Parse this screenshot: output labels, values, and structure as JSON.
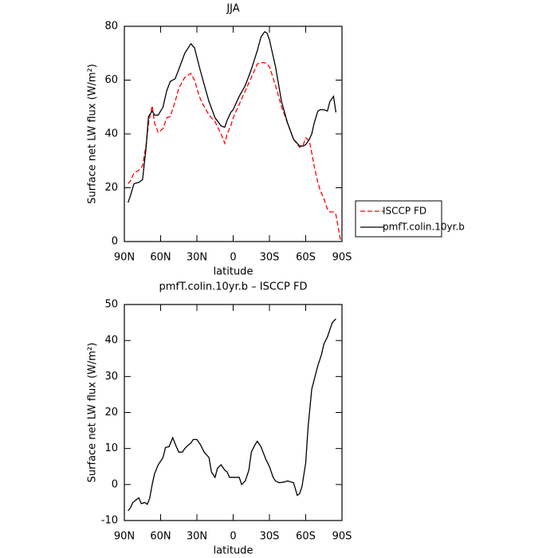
{
  "chart_data": [
    {
      "type": "line",
      "title": "JJA",
      "xlabel": "latitude",
      "ylabel": "Surface net LW flux (W/m²)",
      "x": [
        87,
        85,
        82,
        78,
        75,
        72,
        70,
        67,
        65,
        62,
        58,
        55,
        52,
        48,
        45,
        40,
        35,
        32,
        28,
        25,
        20,
        15,
        10,
        7,
        5,
        2,
        0,
        -5,
        -10,
        -15,
        -20,
        -23,
        -26,
        -28,
        -30,
        -35,
        -40,
        -45,
        -50,
        -55,
        -58,
        -60,
        -63,
        -65,
        -67,
        -70,
        -72,
        -75,
        -78,
        -80,
        -83,
        -85,
        -87,
        -89
      ],
      "series": [
        {
          "name": "ISCCP FD",
          "color": "#ff0000",
          "dashed": true,
          "values": [
            21.5,
            22.5,
            25.5,
            26.5,
            28,
            36,
            44,
            50.5,
            44,
            40.5,
            42,
            46,
            46.5,
            52,
            57,
            61,
            62.5,
            60,
            54,
            51,
            47,
            44.5,
            40,
            36.5,
            40,
            43,
            46,
            51,
            56,
            61,
            66,
            66.5,
            66.5,
            66,
            65,
            58,
            50,
            44,
            38,
            35,
            36,
            38.5,
            37.5,
            33,
            28,
            22,
            19,
            16,
            12,
            11,
            11,
            10,
            5,
            0
          ]
        },
        {
          "name": "pmfT.colin.10yr.b",
          "color": "#000000",
          "dashed": false,
          "values": [
            14.5,
            17,
            21.5,
            22,
            23,
            35,
            46.5,
            48.5,
            47,
            47,
            50,
            56,
            59.5,
            60.5,
            64,
            70,
            73.5,
            72,
            65,
            60,
            52,
            46,
            43,
            42.5,
            45,
            48,
            49,
            54,
            58,
            64,
            71,
            76,
            78,
            77.5,
            75,
            65,
            52,
            44,
            38,
            35.5,
            35.5,
            36,
            38,
            40,
            44,
            48.5,
            49,
            49,
            48.5,
            52,
            54,
            48,
            null,
            null
          ]
        }
      ],
      "xlim": [
        90,
        -90
      ],
      "xticks": [
        {
          "value": 90,
          "label": "90N"
        },
        {
          "value": 60,
          "label": "60N"
        },
        {
          "value": 30,
          "label": "30N"
        },
        0,
        {
          "value": -30,
          "label": "30S"
        },
        {
          "value": -60,
          "label": "60S"
        },
        {
          "value": -90,
          "label": "90S"
        }
      ],
      "ylim": [
        0,
        80
      ],
      "yticks": [
        0,
        20,
        40,
        60,
        80
      ],
      "legend": "right"
    },
    {
      "type": "line",
      "title": "pmfT.colin.10yr.b – ISCCP FD",
      "xlabel": "latitude",
      "ylabel": "Surface net LW flux (W/m²)",
      "x": [
        87,
        85,
        83,
        80,
        78,
        76,
        73,
        71,
        69,
        67,
        65,
        62,
        58,
        56,
        53,
        50,
        47,
        45,
        42,
        40,
        37,
        35,
        33,
        30,
        27,
        24,
        20,
        18,
        15,
        13,
        10,
        7,
        5,
        3,
        0,
        -5,
        -7,
        -10,
        -13,
        -15,
        -18,
        -20,
        -23,
        -27,
        -30,
        -33,
        -35,
        -38,
        -42,
        -45,
        -50,
        -53,
        -55,
        -57,
        -60,
        -62,
        -65,
        -70,
        -73,
        -75,
        -78,
        -80,
        -82,
        -85
      ],
      "series": [
        {
          "color": "#000000",
          "dashed": false,
          "values": [
            -7.3,
            -6.5,
            -5,
            -4.2,
            -3.7,
            -5.3,
            -5,
            -5.5,
            -3.8,
            0,
            3,
            5.5,
            7.5,
            10.3,
            10.5,
            13,
            10.5,
            9,
            9,
            10,
            11,
            11.5,
            12.5,
            12.5,
            11,
            9,
            7.5,
            3.5,
            2,
            4.5,
            5.5,
            4,
            3.5,
            2,
            2,
            2,
            0,
            1,
            4,
            9,
            11,
            12,
            10.5,
            7,
            5,
            2,
            1,
            0.5,
            0.7,
            1,
            0.5,
            -3,
            -2.5,
            -0.5,
            6,
            16,
            26.5,
            33,
            36,
            39,
            41,
            43,
            45,
            46
          ]
        }
      ],
      "xlim": [
        90,
        -90
      ],
      "xticks": [
        {
          "value": 90,
          "label": "90N"
        },
        {
          "value": 60,
          "label": "60N"
        },
        {
          "value": 30,
          "label": "30N"
        },
        0,
        {
          "value": -30,
          "label": "30S"
        },
        {
          "value": -60,
          "label": "60S"
        },
        {
          "value": -90,
          "label": "90S"
        }
      ],
      "ylim": [
        -10,
        50
      ],
      "yticks": [
        -10,
        0,
        10,
        20,
        30,
        40,
        50
      ]
    }
  ]
}
